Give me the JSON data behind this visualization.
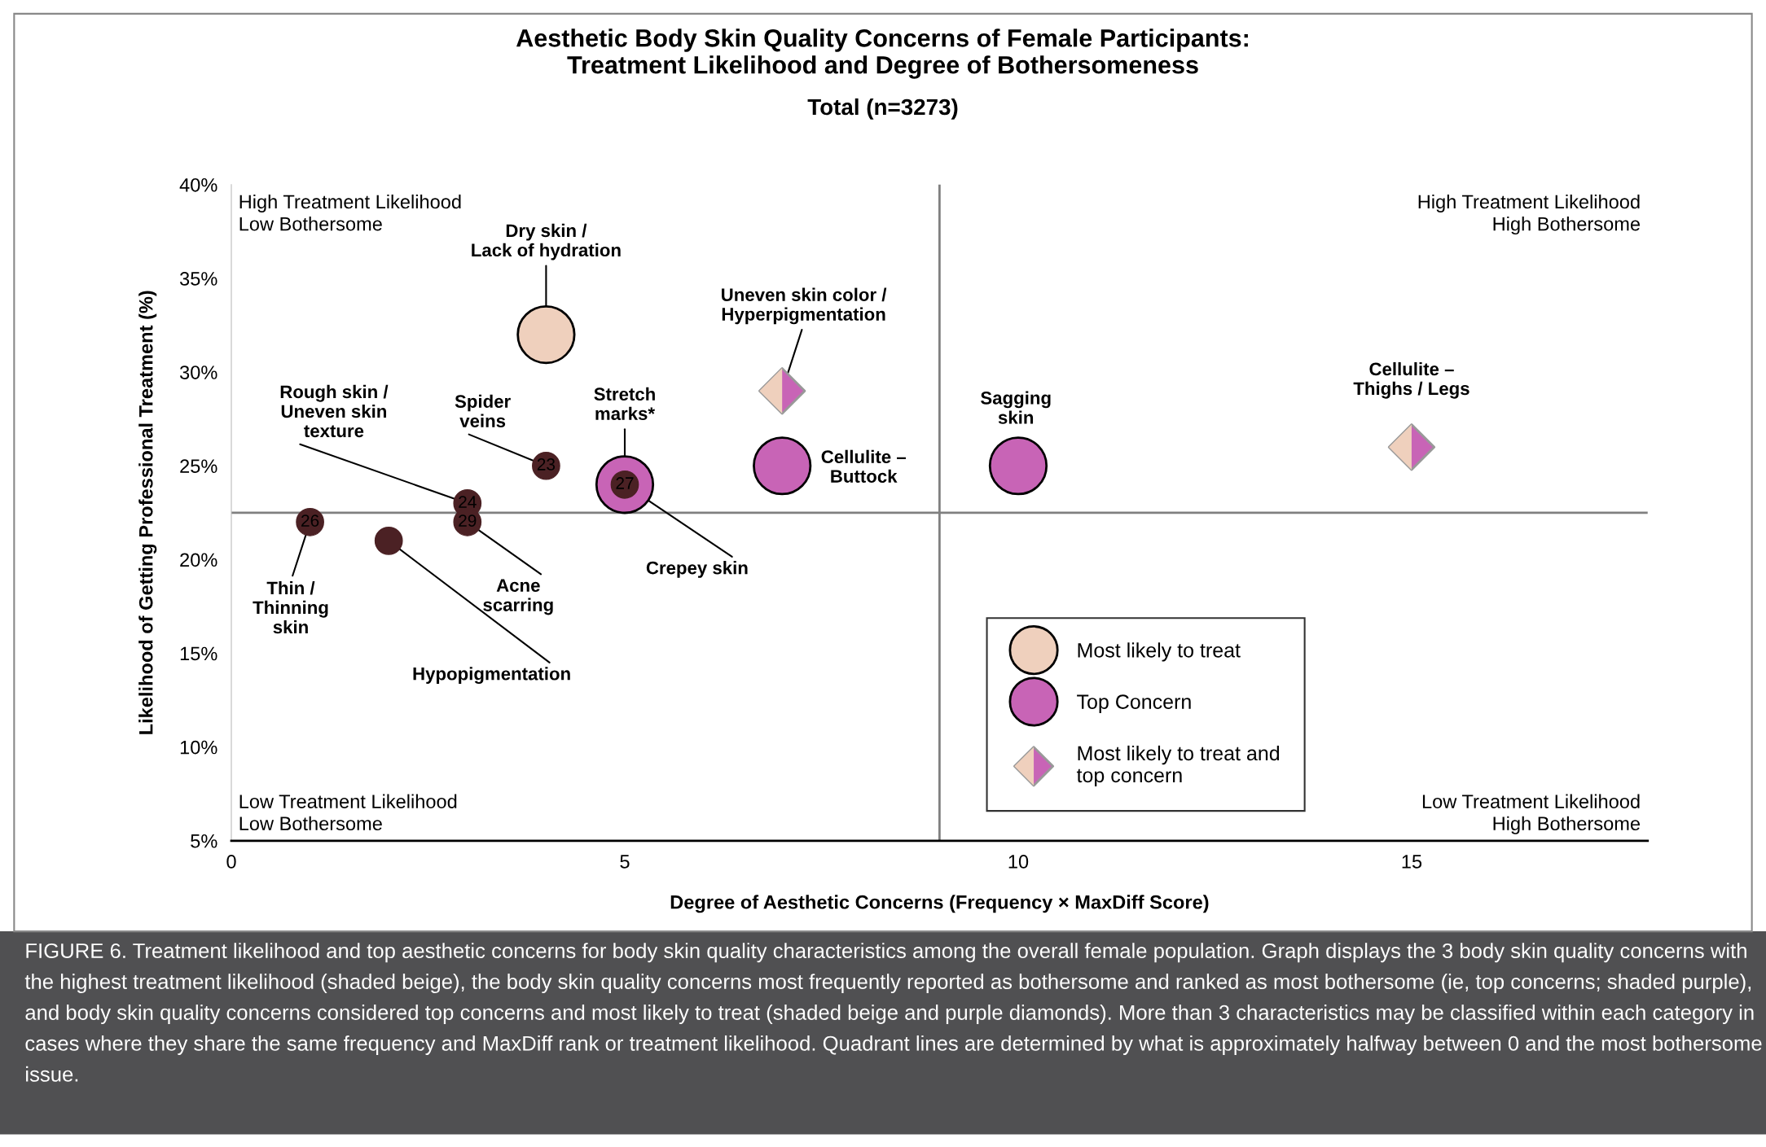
{
  "chart_data": {
    "type": "scatter",
    "title": "Aesthetic Body Skin Quality Concerns of Female Participants:\nTreatment Likelihood and Degree of Bothersomeness",
    "subtitle": "Total (n=3273)",
    "xlabel": "Degree of Aesthetic Concerns (Frequency × MaxDiff Score)",
    "ylabel": "Likelihood of Getting Professional Treatment (%)",
    "xlim": [
      0,
      18
    ],
    "xticks": [
      0,
      5,
      10,
      15
    ],
    "ylim": [
      5,
      40
    ],
    "yticks": [
      {
        "value": 5,
        "label": "5%"
      },
      {
        "value": 10,
        "label": "10%"
      },
      {
        "value": 15,
        "label": "15%"
      },
      {
        "value": 20,
        "label": "20%"
      },
      {
        "value": 25,
        "label": "25%"
      },
      {
        "value": 30,
        "label": "30%"
      },
      {
        "value": 35,
        "label": "35%"
      },
      {
        "value": 40,
        "label": "40%"
      }
    ],
    "grid": false,
    "legend": "lower right",
    "series": [
      {
        "name": "Most likely to treat",
        "color": "#efd0bd",
        "marker": "circle",
        "x": [
          4
        ],
        "values": [
          32
        ]
      },
      {
        "name": "Top Concern",
        "color": "#c864b6",
        "marker": "circle",
        "x": [
          5,
          7,
          10
        ],
        "values": [
          24,
          25,
          25
        ]
      },
      {
        "name": "Most likely to treat and\ntop concern",
        "color": "#c864b6",
        "marker": "diamond",
        "x": [
          7,
          15
        ],
        "values": [
          29,
          26
        ]
      },
      {
        "color": "#4b2124",
        "marker": "circle",
        "x": [
          1,
          2,
          3,
          3,
          4,
          5
        ],
        "values": [
          22,
          21,
          23,
          22,
          25,
          24
        ]
      }
    ],
    "ref_lines": [
      {
        "axis": "x",
        "value": 9,
        "color": "#808080"
      },
      {
        "axis": "y",
        "value": 22.5,
        "color": "#808080"
      }
    ],
    "annotations": [
      {
        "text": "Dry skin /\nLack of hydration",
        "x": 4,
        "y": 32
      },
      {
        "text": "Uneven skin color /\nHyperpigmentation",
        "x": 7,
        "y": 29
      },
      {
        "text": "Rough skin /\nUneven skin\ntexture",
        "x": 3,
        "y": 23
      },
      {
        "text": "Spider\nveins",
        "x": 4,
        "y": 25
      },
      {
        "text": "Stretch\nmarks*",
        "x": 5,
        "y": 24
      },
      {
        "text": "Cellulite –\nButtock",
        "x": 7,
        "y": 25
      },
      {
        "text": "Sagging\nskin",
        "x": 10,
        "y": 25
      },
      {
        "text": "Cellulite –\nThighs / Legs",
        "x": 15,
        "y": 26
      },
      {
        "text": "Crepey skin",
        "x": 5,
        "y": 24
      },
      {
        "text": "Thin /\nThinning\nskin",
        "x": 1,
        "y": 22
      },
      {
        "text": "Hypopigmentation",
        "x": 2,
        "y": 21
      },
      {
        "text": "Acne\nscarring",
        "x": 3,
        "y": 22
      },
      {
        "text": "26",
        "x": 1,
        "y": 22
      },
      {
        "text": "24",
        "x": 3,
        "y": 23
      },
      {
        "text": "29",
        "x": 3,
        "y": 22
      },
      {
        "text": "23",
        "x": 4,
        "y": 25
      },
      {
        "text": "27",
        "x": 5,
        "y": 24
      },
      "High Treatment Likelihood\nLow Bothersome",
      "High Treatment Likelihood\nHigh Bothersome",
      "Low Treatment Likelihood\nLow Bothersome",
      "Low Treatment Likelihood\nHigh Bothersome",
      "FIGURE 6. Treatment likelihood and top aesthetic concerns for body skin quality characteristics among the overall female population. Graph displays the 3 body skin quality concerns with the highest treatment likelihood (shaded beige), the body skin quality concerns most frequently reported as bothersome and ranked as most bothersome (ie, top concerns; shaded purple), and body skin quality concerns considered top concerns and most likely to treat (shaded beige and purple diamonds). More than 3 characteristics may be classified within each category in cases where they share the same frequency and MaxDiff rank or treatment likelihood. Quadrant lines are determined by what is approximately halfway between 0 and the most bothersome issue."
    ]
  }
}
